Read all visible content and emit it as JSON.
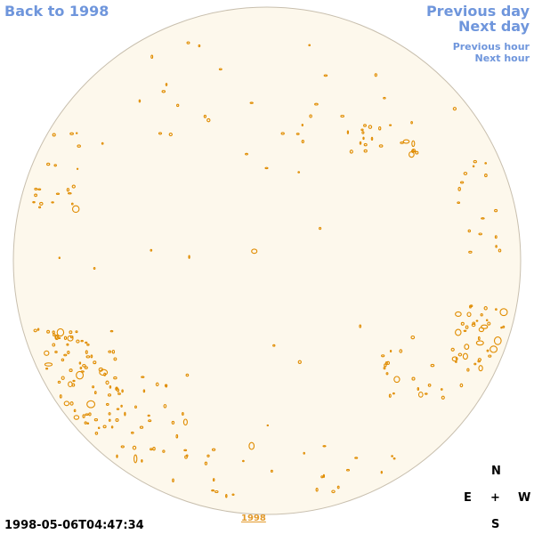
{
  "nav": {
    "back_label": "Back to 1998",
    "prev_day_label": "Previous day",
    "next_day_label": "Next day",
    "prev_hour_label": "Previous hour",
    "next_hour_label": "Next hour"
  },
  "compass": {
    "north": "N",
    "east": "E",
    "center": "+",
    "west": "W",
    "south": "S"
  },
  "timestamp": "1998-05-06T04:47:34",
  "year_label": "1998",
  "colors": {
    "link": "#6f96dc",
    "disk_fill": "#fdf8ec",
    "disk_stroke": "#c8bfae",
    "contour": "#e08c00"
  }
}
